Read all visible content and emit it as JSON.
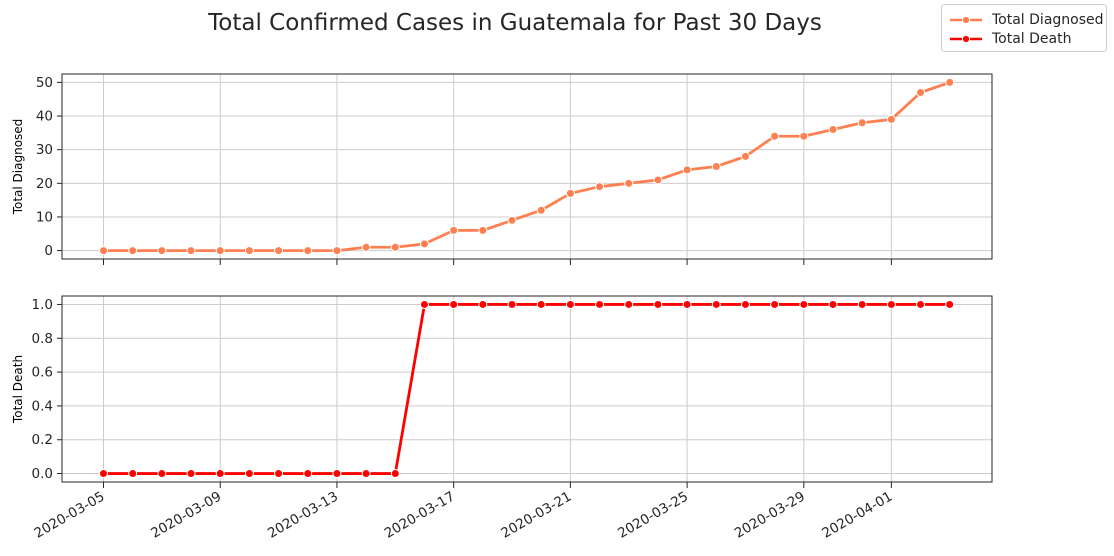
{
  "figure": {
    "title": "Total Confirmed Cases in Guatemala for Past 30 Days"
  },
  "legend": {
    "placement": "top-right",
    "items": [
      {
        "label": "Total Diagnosed",
        "color": "#FF7F50"
      },
      {
        "label": "Total Death",
        "color": "#FF0000"
      }
    ]
  },
  "chart_data": [
    {
      "type": "line",
      "ylabel": "Total Diagnosed",
      "xlabel": "",
      "color": "#FF7F50",
      "grid": true,
      "x": [
        "2020-03-05",
        "2020-03-06",
        "2020-03-07",
        "2020-03-08",
        "2020-03-09",
        "2020-03-10",
        "2020-03-11",
        "2020-03-12",
        "2020-03-13",
        "2020-03-14",
        "2020-03-15",
        "2020-03-16",
        "2020-03-17",
        "2020-03-18",
        "2020-03-19",
        "2020-03-20",
        "2020-03-21",
        "2020-03-22",
        "2020-03-23",
        "2020-03-24",
        "2020-03-25",
        "2020-03-26",
        "2020-03-27",
        "2020-03-28",
        "2020-03-29",
        "2020-03-30",
        "2020-03-31",
        "2020-04-01",
        "2020-04-02",
        "2020-04-03"
      ],
      "series": [
        {
          "name": "Total Diagnosed",
          "values": [
            0,
            0,
            0,
            0,
            0,
            0,
            0,
            0,
            0,
            1,
            1,
            2,
            6,
            6,
            9,
            12,
            17,
            19,
            20,
            21,
            24,
            25,
            28,
            34,
            34,
            36,
            38,
            39,
            47,
            50
          ]
        }
      ],
      "ylim": [
        -2.5,
        52.5
      ],
      "yticks": [
        "0",
        "10",
        "20",
        "30",
        "40",
        "50"
      ],
      "xticks": [
        "2020-03-05",
        "2020-03-09",
        "2020-03-13",
        "2020-03-17",
        "2020-03-21",
        "2020-03-25",
        "2020-03-29",
        "2020-04-01"
      ]
    },
    {
      "type": "line",
      "ylabel": "Total Death",
      "xlabel": "",
      "color": "#FF0000",
      "grid": true,
      "x": [
        "2020-03-05",
        "2020-03-06",
        "2020-03-07",
        "2020-03-08",
        "2020-03-09",
        "2020-03-10",
        "2020-03-11",
        "2020-03-12",
        "2020-03-13",
        "2020-03-14",
        "2020-03-15",
        "2020-03-16",
        "2020-03-17",
        "2020-03-18",
        "2020-03-19",
        "2020-03-20",
        "2020-03-21",
        "2020-03-22",
        "2020-03-23",
        "2020-03-24",
        "2020-03-25",
        "2020-03-26",
        "2020-03-27",
        "2020-03-28",
        "2020-03-29",
        "2020-03-30",
        "2020-03-31",
        "2020-04-01",
        "2020-04-02",
        "2020-04-03"
      ],
      "series": [
        {
          "name": "Total Death",
          "values": [
            0,
            0,
            0,
            0,
            0,
            0,
            0,
            0,
            0,
            0,
            0,
            1,
            1,
            1,
            1,
            1,
            1,
            1,
            1,
            1,
            1,
            1,
            1,
            1,
            1,
            1,
            1,
            1,
            1,
            1
          ]
        }
      ],
      "ylim": [
        -0.05,
        1.05
      ],
      "yticks": [
        "0.0",
        "0.2",
        "0.4",
        "0.6",
        "0.8",
        "1.0"
      ],
      "xticks": [
        "2020-03-05",
        "2020-03-09",
        "2020-03-13",
        "2020-03-17",
        "2020-03-21",
        "2020-03-25",
        "2020-03-29",
        "2020-04-01"
      ]
    }
  ]
}
